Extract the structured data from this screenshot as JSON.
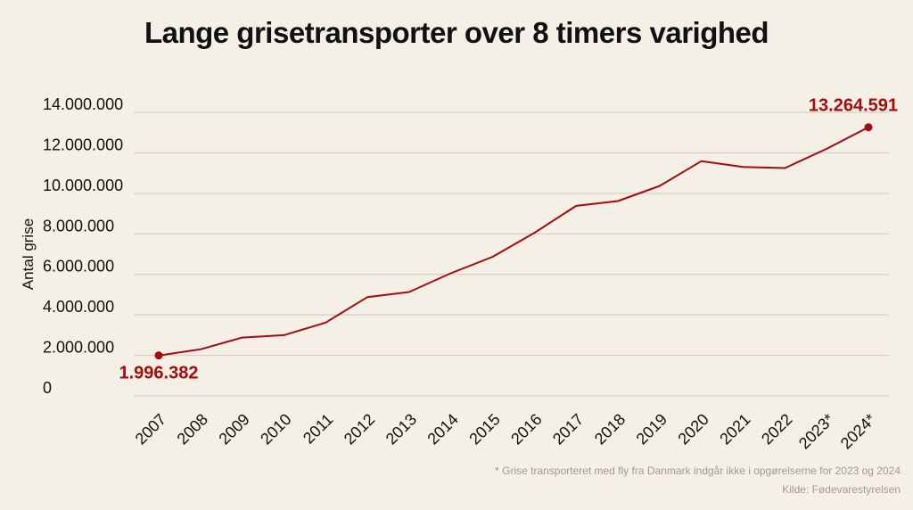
{
  "title": "Lange grisetransporter over 8 timers varighed",
  "footnote": "* Grise transporteret med fly fra Danmark indgår ikke i opgørelserne for 2023 og 2024",
  "source": "Kilde: Fødevarestyrelsen",
  "colors": {
    "background": "#f4f0e6",
    "line": "#a30d0d",
    "annotation": "#a30d0d",
    "grid": "#cfcac0",
    "text": "#111111",
    "footnote": "#a09a90"
  },
  "chart_data": {
    "type": "line",
    "title": "Lange grisetransporter over 8 timers varighed",
    "xlabel": "",
    "ylabel": "Antal grise",
    "ylim": [
      0,
      14000000
    ],
    "yticks": [
      0,
      2000000,
      4000000,
      6000000,
      8000000,
      10000000,
      12000000,
      14000000
    ],
    "ytick_labels": [
      "0",
      "2.000.000",
      "4.000.000",
      "6.000.000",
      "8.000.000",
      "10.000.000",
      "12.000.000",
      "14.000.000"
    ],
    "grid": true,
    "legend": "none",
    "categories": [
      "2007",
      "2008",
      "2009",
      "2010",
      "2011",
      "2012",
      "2013",
      "2014",
      "2015",
      "2016",
      "2017",
      "2018",
      "2019",
      "2020",
      "2021",
      "2022",
      "2023*",
      "2024*"
    ],
    "series": [
      {
        "values": [
          1996382,
          2300000,
          2880000,
          3000000,
          3620000,
          4880000,
          5130000,
          6060000,
          6870000,
          8050000,
          9380000,
          9620000,
          10370000,
          11590000,
          11300000,
          11250000,
          12200000,
          13264591
        ]
      }
    ],
    "annotations": [
      {
        "category": "2007",
        "value": 1996382,
        "label": "1.996.382"
      },
      {
        "category": "2024*",
        "value": 13264591,
        "label": "13.264.591"
      }
    ]
  }
}
